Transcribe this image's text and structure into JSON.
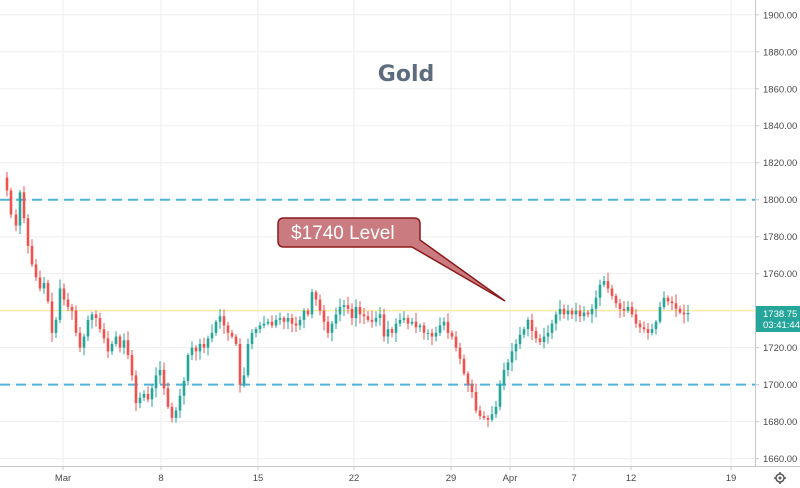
{
  "chart_data": {
    "type": "candlestick",
    "title": "Gold",
    "annotation": "$1740 Level",
    "y_ticks": [
      "1900.00",
      "1880.00",
      "1860.00",
      "1840.00",
      "1820.00",
      "1800.00",
      "1780.00",
      "1760.00",
      "1740.00",
      "1720.00",
      "1700.00",
      "1680.00",
      "1660.00"
    ],
    "x_ticks": [
      "Mar",
      "8",
      "15",
      "22",
      "29",
      "Apr",
      "7",
      "12",
      "19"
    ],
    "ylim": [
      1656,
      1908
    ],
    "last_price": "1738.75",
    "countdown": "03:41:44",
    "levels": [
      {
        "value": 1800,
        "style": "dashed",
        "color": "#4fb3d9"
      },
      {
        "value": 1740,
        "style": "solid",
        "color": "#f7e9a8"
      },
      {
        "value": 1700,
        "style": "dashed",
        "color": "#4fb3d9"
      }
    ],
    "colors": {
      "up": "#26a69a",
      "down": "#ef5350",
      "callout_fill": "#c97b7f",
      "callout_border": "#8b1a1a"
    },
    "close_path": [
      [
        0,
        1812
      ],
      [
        5,
        1805
      ],
      [
        9,
        1792
      ],
      [
        14,
        1786
      ],
      [
        18,
        1804
      ],
      [
        22,
        1790
      ],
      [
        26,
        1775
      ],
      [
        30,
        1765
      ],
      [
        34,
        1758
      ],
      [
        38,
        1752
      ],
      [
        42,
        1755
      ],
      [
        46,
        1745
      ],
      [
        50,
        1728
      ],
      [
        54,
        1735
      ],
      [
        58,
        1752
      ],
      [
        62,
        1746
      ],
      [
        66,
        1742
      ],
      [
        70,
        1740
      ],
      [
        74,
        1728
      ],
      [
        78,
        1720
      ],
      [
        82,
        1726
      ],
      [
        86,
        1735
      ],
      [
        90,
        1738
      ],
      [
        94,
        1736
      ],
      [
        98,
        1730
      ],
      [
        102,
        1725
      ],
      [
        106,
        1718
      ],
      [
        110,
        1722
      ],
      [
        114,
        1726
      ],
      [
        118,
        1720
      ],
      [
        122,
        1724
      ],
      [
        126,
        1716
      ],
      [
        130,
        1705
      ],
      [
        134,
        1690
      ],
      [
        138,
        1693
      ],
      [
        142,
        1695
      ],
      [
        146,
        1692
      ],
      [
        150,
        1698
      ],
      [
        154,
        1705
      ],
      [
        158,
        1708
      ],
      [
        162,
        1698
      ],
      [
        166,
        1688
      ],
      [
        170,
        1682
      ],
      [
        174,
        1686
      ],
      [
        178,
        1694
      ],
      [
        182,
        1702
      ],
      [
        186,
        1716
      ],
      [
        190,
        1720
      ],
      [
        194,
        1718
      ],
      [
        198,
        1722
      ],
      [
        202,
        1720
      ],
      [
        206,
        1725
      ],
      [
        210,
        1728
      ],
      [
        214,
        1734
      ],
      [
        218,
        1737
      ],
      [
        222,
        1732
      ],
      [
        226,
        1728
      ],
      [
        230,
        1726
      ],
      [
        234,
        1722
      ],
      [
        238,
        1700
      ],
      [
        242,
        1705
      ],
      [
        246,
        1722
      ],
      [
        250,
        1728
      ],
      [
        254,
        1730
      ],
      [
        258,
        1732
      ],
      [
        262,
        1733
      ],
      [
        266,
        1734
      ],
      [
        270,
        1732
      ],
      [
        274,
        1735
      ],
      [
        278,
        1736
      ],
      [
        282,
        1734
      ],
      [
        286,
        1736
      ],
      [
        290,
        1733
      ],
      [
        294,
        1732
      ],
      [
        298,
        1735
      ],
      [
        302,
        1740
      ],
      [
        306,
        1738
      ],
      [
        310,
        1750
      ],
      [
        314,
        1746
      ],
      [
        318,
        1740
      ],
      [
        322,
        1734
      ],
      [
        326,
        1728
      ],
      [
        330,
        1733
      ],
      [
        334,
        1738
      ],
      [
        338,
        1742
      ],
      [
        342,
        1743
      ],
      [
        346,
        1741
      ],
      [
        350,
        1736
      ],
      [
        354,
        1742
      ],
      [
        358,
        1738
      ],
      [
        362,
        1737
      ],
      [
        366,
        1735
      ],
      [
        370,
        1734
      ],
      [
        374,
        1736
      ],
      [
        378,
        1738
      ],
      [
        382,
        1726
      ],
      [
        386,
        1730
      ],
      [
        390,
        1728
      ],
      [
        394,
        1733
      ],
      [
        398,
        1735
      ],
      [
        402,
        1736
      ],
      [
        406,
        1733
      ],
      [
        410,
        1734
      ],
      [
        414,
        1731
      ],
      [
        418,
        1732
      ],
      [
        422,
        1728
      ],
      [
        426,
        1728
      ],
      [
        430,
        1726
      ],
      [
        434,
        1728
      ],
      [
        438,
        1732
      ],
      [
        442,
        1734
      ],
      [
        446,
        1728
      ],
      [
        450,
        1726
      ],
      [
        454,
        1720
      ],
      [
        458,
        1714
      ],
      [
        462,
        1706
      ],
      [
        466,
        1700
      ],
      [
        470,
        1696
      ],
      [
        474,
        1686
      ],
      [
        478,
        1683
      ],
      [
        482,
        1682
      ],
      [
        486,
        1681
      ],
      [
        490,
        1684
      ],
      [
        494,
        1688
      ],
      [
        498,
        1700
      ],
      [
        502,
        1708
      ],
      [
        506,
        1712
      ],
      [
        510,
        1718
      ],
      [
        514,
        1722
      ],
      [
        518,
        1727
      ],
      [
        522,
        1730
      ],
      [
        526,
        1735
      ],
      [
        530,
        1729
      ],
      [
        534,
        1725
      ],
      [
        538,
        1723
      ],
      [
        542,
        1726
      ],
      [
        546,
        1728
      ],
      [
        550,
        1733
      ],
      [
        554,
        1738
      ],
      [
        558,
        1741
      ],
      [
        562,
        1738
      ],
      [
        566,
        1740
      ],
      [
        570,
        1738
      ],
      [
        574,
        1740
      ],
      [
        578,
        1737
      ],
      [
        582,
        1739
      ],
      [
        586,
        1738
      ],
      [
        590,
        1741
      ],
      [
        594,
        1747
      ],
      [
        598,
        1754
      ],
      [
        602,
        1756
      ],
      [
        606,
        1752
      ],
      [
        610,
        1748
      ],
      [
        614,
        1744
      ],
      [
        618,
        1741
      ],
      [
        622,
        1740
      ],
      [
        626,
        1742
      ],
      [
        630,
        1738
      ],
      [
        634,
        1733
      ],
      [
        638,
        1731
      ],
      [
        642,
        1730
      ],
      [
        646,
        1728
      ],
      [
        650,
        1730
      ],
      [
        654,
        1734
      ],
      [
        658,
        1742
      ],
      [
        662,
        1747
      ],
      [
        666,
        1745
      ],
      [
        670,
        1744
      ],
      [
        674,
        1741
      ],
      [
        678,
        1739
      ],
      [
        682,
        1738
      ],
      [
        686,
        1738.75
      ]
    ]
  }
}
